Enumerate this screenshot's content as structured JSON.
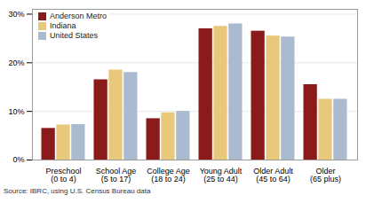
{
  "chart_data": {
    "type": "bar",
    "categories": [
      "Preschool\n(0 to 4)",
      "School Age\n(5 to 17)",
      "College Age\n(18 to 24)",
      "Young Adult\n(25 to 44)",
      "Older Adult\n(45 to 64)",
      "Older\n(65 plus)"
    ],
    "series": [
      {
        "name": "Anderson Metro",
        "color": "#8B1A1A",
        "values": [
          6.5,
          16.5,
          8.5,
          27.0,
          26.5,
          15.5
        ]
      },
      {
        "name": "Indiana",
        "color": "#E8C87A",
        "values": [
          7.2,
          18.5,
          9.7,
          27.5,
          25.5,
          12.5
        ]
      },
      {
        "name": "United States",
        "color": "#AABBD0",
        "values": [
          7.3,
          18.0,
          10.0,
          28.0,
          25.3,
          12.5
        ]
      }
    ],
    "ylim": [
      0,
      31
    ],
    "yticks": [
      {
        "value": 0,
        "label": "0%"
      },
      {
        "value": 10,
        "label": "10%"
      },
      {
        "value": 20,
        "label": "20%"
      },
      {
        "value": 30,
        "label": "30%"
      }
    ],
    "grid": true,
    "legend": "upper left",
    "annotations": [
      "Source: IBRC, using U.S. Census Bureau data"
    ]
  }
}
